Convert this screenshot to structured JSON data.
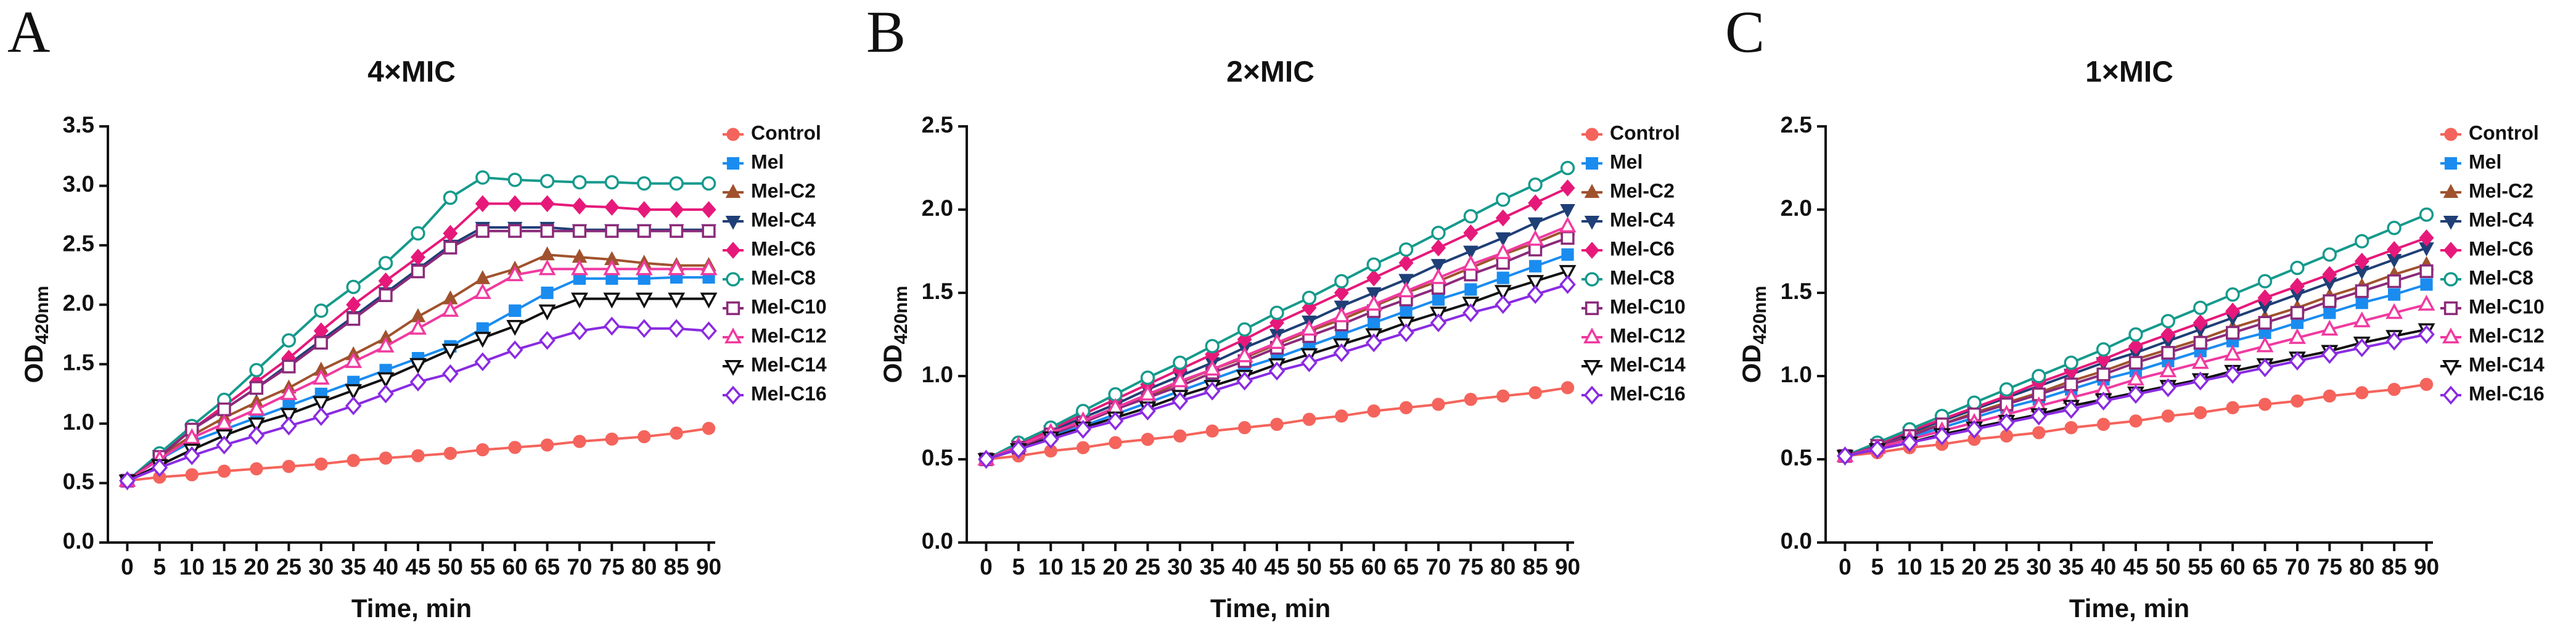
{
  "chart_data": [
    {
      "type": "line",
      "panel": "A",
      "title": "4×MIC",
      "xlabel": "Time, min",
      "ylabel": "OD",
      "ylabel_subscript": "420nm",
      "legend_position": "right",
      "x": [
        0,
        5,
        10,
        15,
        20,
        25,
        30,
        35,
        40,
        45,
        50,
        55,
        60,
        65,
        70,
        75,
        80,
        85,
        90
      ],
      "xlim": [
        -3,
        91
      ],
      "xticks": [
        0,
        5,
        10,
        15,
        20,
        25,
        30,
        35,
        40,
        45,
        50,
        55,
        60,
        65,
        70,
        75,
        80,
        85,
        90
      ],
      "ylim": [
        0,
        3.5
      ],
      "yticks": [
        {
          "value": 0,
          "label": "0.0"
        },
        0.5,
        {
          "value": 1,
          "label": "1.0"
        },
        1.5,
        {
          "value": 2,
          "label": "2.0"
        },
        2.5,
        {
          "value": 3,
          "label": "3.0"
        },
        3.5
      ],
      "series": [
        {
          "name": "Control",
          "color": "#f4645c",
          "marker": "circle",
          "values": [
            0.52,
            0.55,
            0.57,
            0.6,
            0.62,
            0.64,
            0.66,
            0.69,
            0.71,
            0.73,
            0.75,
            0.78,
            0.8,
            0.82,
            0.85,
            0.87,
            0.89,
            0.92,
            0.96
          ]
        },
        {
          "name": "Mel",
          "color": "#1a8cf0",
          "marker": "square",
          "values": [
            0.52,
            0.7,
            0.85,
            0.95,
            1.05,
            1.15,
            1.25,
            1.35,
            1.45,
            1.55,
            1.65,
            1.8,
            1.95,
            2.1,
            2.22,
            2.22,
            2.22,
            2.23,
            2.23
          ]
        },
        {
          "name": "Mel-C2",
          "color": "#a0522d",
          "marker": "triangle-up",
          "values": [
            0.52,
            0.72,
            0.9,
            1.05,
            1.18,
            1.3,
            1.45,
            1.58,
            1.72,
            1.9,
            2.05,
            2.22,
            2.3,
            2.42,
            2.4,
            2.38,
            2.35,
            2.33,
            2.33
          ]
        },
        {
          "name": "Mel-C4",
          "color": "#1f3f77",
          "marker": "triangle-down",
          "values": [
            0.52,
            0.73,
            0.95,
            1.12,
            1.3,
            1.5,
            1.7,
            1.9,
            2.1,
            2.3,
            2.5,
            2.65,
            2.65,
            2.65,
            2.63,
            2.63,
            2.63,
            2.63,
            2.63
          ]
        },
        {
          "name": "Mel-C6",
          "color": "#e6197a",
          "marker": "diamond",
          "values": [
            0.52,
            0.73,
            0.95,
            1.15,
            1.35,
            1.55,
            1.78,
            2.0,
            2.2,
            2.4,
            2.6,
            2.85,
            2.85,
            2.85,
            2.83,
            2.82,
            2.8,
            2.8,
            2.8
          ]
        },
        {
          "name": "Mel-C8",
          "color": "#159a8c",
          "marker": "circle-open",
          "values": [
            0.52,
            0.75,
            0.98,
            1.2,
            1.45,
            1.7,
            1.95,
            2.15,
            2.35,
            2.6,
            2.9,
            3.07,
            3.05,
            3.04,
            3.03,
            3.03,
            3.02,
            3.02,
            3.02
          ]
        },
        {
          "name": "Mel-C10",
          "color": "#8b2a7a",
          "marker": "square-open",
          "values": [
            0.52,
            0.72,
            0.95,
            1.12,
            1.3,
            1.48,
            1.68,
            1.88,
            2.08,
            2.28,
            2.48,
            2.62,
            2.62,
            2.62,
            2.62,
            2.62,
            2.62,
            2.62,
            2.62
          ]
        },
        {
          "name": "Mel-C12",
          "color": "#f03aa0",
          "marker": "triangle-up-open",
          "values": [
            0.52,
            0.7,
            0.88,
            1.0,
            1.12,
            1.25,
            1.38,
            1.52,
            1.65,
            1.8,
            1.95,
            2.1,
            2.25,
            2.3,
            2.3,
            2.3,
            2.3,
            2.3,
            2.3
          ]
        },
        {
          "name": "Mel-C14",
          "color": "#111111",
          "marker": "triangle-down-open",
          "values": [
            0.52,
            0.65,
            0.78,
            0.9,
            1.0,
            1.08,
            1.18,
            1.28,
            1.38,
            1.5,
            1.62,
            1.72,
            1.82,
            1.95,
            2.05,
            2.05,
            2.05,
            2.05,
            2.05
          ]
        },
        {
          "name": "Mel-C16",
          "color": "#8a2be2",
          "marker": "diamond-open",
          "values": [
            0.52,
            0.63,
            0.73,
            0.82,
            0.9,
            0.98,
            1.06,
            1.15,
            1.25,
            1.35,
            1.42,
            1.52,
            1.62,
            1.7,
            1.78,
            1.82,
            1.8,
            1.8,
            1.78
          ]
        }
      ]
    },
    {
      "type": "line",
      "panel": "B",
      "title": "2×MIC",
      "xlabel": "Time, min",
      "ylabel": "OD",
      "ylabel_subscript": "420nm",
      "legend_position": "right",
      "x": [
        0,
        5,
        10,
        15,
        20,
        25,
        30,
        35,
        40,
        45,
        50,
        55,
        60,
        65,
        70,
        75,
        80,
        85,
        90
      ],
      "xlim": [
        -3,
        91
      ],
      "xticks": [
        0,
        5,
        10,
        15,
        20,
        25,
        30,
        35,
        40,
        45,
        50,
        55,
        60,
        65,
        70,
        75,
        80,
        85,
        90
      ],
      "ylim": [
        0,
        2.5
      ],
      "yticks": [
        {
          "value": 0,
          "label": "0.0"
        },
        0.5,
        {
          "value": 1,
          "label": "1.0"
        },
        1.5,
        {
          "value": 2,
          "label": "2.0"
        },
        2.5
      ],
      "series": [
        {
          "name": "Control",
          "color": "#f4645c",
          "marker": "circle",
          "values": [
            0.5,
            0.52,
            0.55,
            0.57,
            0.6,
            0.62,
            0.64,
            0.67,
            0.69,
            0.71,
            0.74,
            0.76,
            0.79,
            0.81,
            0.83,
            0.86,
            0.88,
            0.9,
            0.93
          ]
        },
        {
          "name": "Mel",
          "color": "#1a8cf0",
          "marker": "square",
          "values": [
            0.5,
            0.57,
            0.64,
            0.7,
            0.77,
            0.84,
            0.91,
            0.98,
            1.05,
            1.11,
            1.18,
            1.25,
            1.32,
            1.39,
            1.46,
            1.52,
            1.59,
            1.66,
            1.73
          ]
        },
        {
          "name": "Mel-C2",
          "color": "#a0522d",
          "marker": "triangle-up",
          "values": [
            0.5,
            0.58,
            0.65,
            0.73,
            0.81,
            0.88,
            0.96,
            1.04,
            1.11,
            1.19,
            1.27,
            1.34,
            1.42,
            1.5,
            1.57,
            1.65,
            1.73,
            1.8,
            1.88
          ]
        },
        {
          "name": "Mel-C4",
          "color": "#1f3f77",
          "marker": "triangle-down",
          "values": [
            0.5,
            0.58,
            0.67,
            0.75,
            0.83,
            0.92,
            1.0,
            1.08,
            1.17,
            1.25,
            1.33,
            1.42,
            1.5,
            1.58,
            1.67,
            1.75,
            1.83,
            1.92,
            2.0
          ]
        },
        {
          "name": "Mel-C6",
          "color": "#e6197a",
          "marker": "diamond",
          "values": [
            0.5,
            0.59,
            0.68,
            0.77,
            0.86,
            0.95,
            1.04,
            1.13,
            1.22,
            1.32,
            1.41,
            1.5,
            1.59,
            1.68,
            1.77,
            1.86,
            1.95,
            2.04,
            2.13
          ]
        },
        {
          "name": "Mel-C8",
          "color": "#159a8c",
          "marker": "circle-open",
          "values": [
            0.5,
            0.6,
            0.69,
            0.79,
            0.89,
            0.99,
            1.08,
            1.18,
            1.28,
            1.38,
            1.47,
            1.57,
            1.67,
            1.76,
            1.86,
            1.96,
            2.06,
            2.15,
            2.25
          ]
        },
        {
          "name": "Mel-C10",
          "color": "#8b2a7a",
          "marker": "square-open",
          "values": [
            0.5,
            0.57,
            0.65,
            0.72,
            0.8,
            0.87,
            0.94,
            1.02,
            1.09,
            1.17,
            1.24,
            1.31,
            1.39,
            1.46,
            1.53,
            1.61,
            1.68,
            1.76,
            1.83
          ]
        },
        {
          "name": "Mel-C12",
          "color": "#f03aa0",
          "marker": "triangle-up-open",
          "values": [
            0.5,
            0.58,
            0.66,
            0.73,
            0.81,
            0.89,
            0.97,
            1.04,
            1.12,
            1.2,
            1.28,
            1.36,
            1.43,
            1.51,
            1.59,
            1.67,
            1.74,
            1.82,
            1.9
          ]
        },
        {
          "name": "Mel-C14",
          "color": "#111111",
          "marker": "triangle-down-open",
          "values": [
            0.5,
            0.56,
            0.63,
            0.69,
            0.75,
            0.81,
            0.88,
            0.94,
            1.0,
            1.07,
            1.13,
            1.19,
            1.25,
            1.32,
            1.38,
            1.44,
            1.51,
            1.57,
            1.63
          ]
        },
        {
          "name": "Mel-C16",
          "color": "#8a2be2",
          "marker": "diamond-open",
          "values": [
            0.5,
            0.56,
            0.62,
            0.68,
            0.73,
            0.79,
            0.85,
            0.91,
            0.97,
            1.03,
            1.08,
            1.14,
            1.2,
            1.26,
            1.32,
            1.38,
            1.43,
            1.49,
            1.55
          ]
        }
      ]
    },
    {
      "type": "line",
      "panel": "C",
      "title": "1×MIC",
      "xlabel": "Time, min",
      "ylabel": "OD",
      "ylabel_subscript": "420nm",
      "legend_position": "right",
      "x": [
        0,
        5,
        10,
        15,
        20,
        25,
        30,
        35,
        40,
        45,
        50,
        55,
        60,
        65,
        70,
        75,
        80,
        85,
        90
      ],
      "xlim": [
        -3,
        91
      ],
      "xticks": [
        0,
        5,
        10,
        15,
        20,
        25,
        30,
        35,
        40,
        45,
        50,
        55,
        60,
        65,
        70,
        75,
        80,
        85,
        90
      ],
      "ylim": [
        0,
        2.5
      ],
      "yticks": [
        {
          "value": 0,
          "label": "0.0"
        },
        0.5,
        {
          "value": 1,
          "label": "1.0"
        },
        1.5,
        {
          "value": 2,
          "label": "2.0"
        },
        2.5
      ],
      "series": [
        {
          "name": "Control",
          "color": "#f4645c",
          "marker": "circle",
          "values": [
            0.52,
            0.54,
            0.57,
            0.59,
            0.62,
            0.64,
            0.66,
            0.69,
            0.71,
            0.73,
            0.76,
            0.78,
            0.81,
            0.83,
            0.85,
            0.88,
            0.9,
            0.92,
            0.95
          ]
        },
        {
          "name": "Mel",
          "color": "#1a8cf0",
          "marker": "square",
          "values": [
            0.52,
            0.58,
            0.63,
            0.69,
            0.75,
            0.81,
            0.86,
            0.92,
            0.98,
            1.03,
            1.09,
            1.15,
            1.21,
            1.26,
            1.32,
            1.38,
            1.44,
            1.49,
            1.55
          ]
        },
        {
          "name": "Mel-C2",
          "color": "#a0522d",
          "marker": "triangle-up",
          "values": [
            0.52,
            0.58,
            0.65,
            0.71,
            0.78,
            0.84,
            0.9,
            0.97,
            1.03,
            1.1,
            1.16,
            1.22,
            1.29,
            1.35,
            1.41,
            1.48,
            1.54,
            1.61,
            1.67
          ]
        },
        {
          "name": "Mel-C4",
          "color": "#1f3f77",
          "marker": "triangle-down",
          "values": [
            0.52,
            0.59,
            0.66,
            0.73,
            0.8,
            0.87,
            0.94,
            1.01,
            1.08,
            1.14,
            1.21,
            1.28,
            1.35,
            1.42,
            1.49,
            1.56,
            1.63,
            1.7,
            1.77
          ]
        },
        {
          "name": "Mel-C6",
          "color": "#e6197a",
          "marker": "diamond",
          "values": [
            0.52,
            0.59,
            0.67,
            0.74,
            0.81,
            0.88,
            0.96,
            1.03,
            1.1,
            1.18,
            1.25,
            1.32,
            1.39,
            1.47,
            1.54,
            1.61,
            1.69,
            1.76,
            1.83
          ]
        },
        {
          "name": "Mel-C8",
          "color": "#159a8c",
          "marker": "circle-open",
          "values": [
            0.52,
            0.6,
            0.68,
            0.76,
            0.84,
            0.92,
            1.0,
            1.08,
            1.16,
            1.25,
            1.33,
            1.41,
            1.49,
            1.57,
            1.65,
            1.73,
            1.81,
            1.89,
            1.97
          ]
        },
        {
          "name": "Mel-C10",
          "color": "#8b2a7a",
          "marker": "square-open",
          "values": [
            0.52,
            0.58,
            0.64,
            0.71,
            0.77,
            0.83,
            0.89,
            0.95,
            1.01,
            1.08,
            1.14,
            1.2,
            1.26,
            1.32,
            1.38,
            1.45,
            1.51,
            1.57,
            1.63
          ]
        },
        {
          "name": "Mel-C12",
          "color": "#f03aa0",
          "marker": "triangle-up-open",
          "values": [
            0.52,
            0.57,
            0.62,
            0.67,
            0.72,
            0.77,
            0.82,
            0.87,
            0.92,
            0.98,
            1.03,
            1.08,
            1.13,
            1.18,
            1.23,
            1.28,
            1.33,
            1.38,
            1.43
          ]
        },
        {
          "name": "Mel-C14",
          "color": "#111111",
          "marker": "triangle-down-open",
          "values": [
            0.52,
            0.56,
            0.6,
            0.65,
            0.69,
            0.73,
            0.77,
            0.82,
            0.86,
            0.9,
            0.94,
            0.98,
            1.03,
            1.07,
            1.11,
            1.15,
            1.2,
            1.24,
            1.28
          ]
        },
        {
          "name": "Mel-C16",
          "color": "#8a2be2",
          "marker": "diamond-open",
          "values": [
            0.52,
            0.56,
            0.6,
            0.64,
            0.68,
            0.72,
            0.76,
            0.8,
            0.85,
            0.89,
            0.93,
            0.97,
            1.01,
            1.05,
            1.09,
            1.13,
            1.17,
            1.21,
            1.25
          ]
        }
      ]
    }
  ]
}
